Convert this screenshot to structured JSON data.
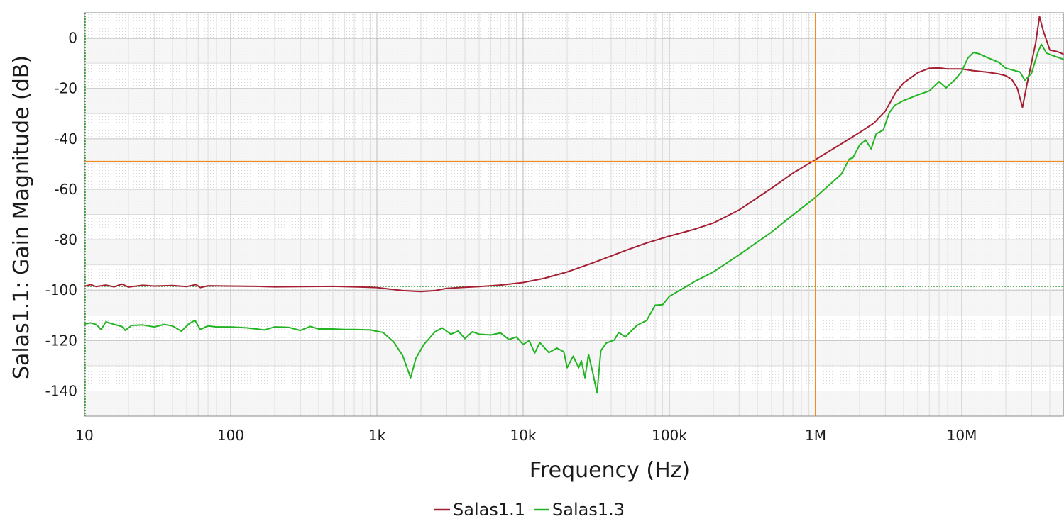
{
  "chart_data": {
    "type": "line",
    "xlabel": "Frequency (Hz)",
    "ylabel": "Salas1.1: Gain Magnitude (dB)",
    "xscale": "log",
    "xlim": [
      10,
      50000000
    ],
    "ylim": [
      -150,
      10
    ],
    "grid": true,
    "legend_position": "bottom-center",
    "x_ticks": [
      10,
      100,
      1000,
      10000,
      100000,
      1000000,
      10000000
    ],
    "x_tick_labels": [
      "10",
      "100",
      "1k",
      "10k",
      "100k",
      "1M",
      "10M"
    ],
    "y_ticks": [
      0,
      -20,
      -40,
      -60,
      -80,
      -100,
      -120,
      -140
    ],
    "y_tick_labels": [
      "0",
      "-20",
      "-40",
      "-60",
      "-80",
      "-100",
      "-120",
      "-140"
    ],
    "cursors": {
      "vertical_x": 1000000,
      "horizontal_y": -49,
      "reference_y": -98.5
    },
    "colors": {
      "cursor": "#f08c1e",
      "reference_line": "#1f9a1f",
      "zero_line": "#000000",
      "ylabel": "#a51f32"
    },
    "series": [
      {
        "name": "Salas1.1",
        "color": "#a51f32",
        "points": [
          [
            10,
            -98.5
          ],
          [
            11,
            -97.8
          ],
          [
            12,
            -98.6
          ],
          [
            14,
            -98.0
          ],
          [
            16,
            -98.7
          ],
          [
            18,
            -97.6
          ],
          [
            20,
            -98.8
          ],
          [
            25,
            -98.1
          ],
          [
            30,
            -98.4
          ],
          [
            40,
            -98.2
          ],
          [
            50,
            -98.6
          ],
          [
            58,
            -97.8
          ],
          [
            62,
            -99.0
          ],
          [
            70,
            -98.3
          ],
          [
            100,
            -98.4
          ],
          [
            150,
            -98.5
          ],
          [
            200,
            -98.7
          ],
          [
            300,
            -98.6
          ],
          [
            500,
            -98.5
          ],
          [
            700,
            -98.7
          ],
          [
            1000,
            -99.0
          ],
          [
            1500,
            -100.2
          ],
          [
            2000,
            -100.6
          ],
          [
            2500,
            -100.2
          ],
          [
            3000,
            -99.3
          ],
          [
            4000,
            -98.9
          ],
          [
            5000,
            -98.6
          ],
          [
            7000,
            -98.0
          ],
          [
            10000,
            -97.0
          ],
          [
            14000,
            -95.3
          ],
          [
            20000,
            -92.8
          ],
          [
            30000,
            -89.2
          ],
          [
            50000,
            -84.3
          ],
          [
            70000,
            -81.3
          ],
          [
            100000,
            -78.6
          ],
          [
            150000,
            -75.8
          ],
          [
            200000,
            -73.4
          ],
          [
            300000,
            -68.2
          ],
          [
            500000,
            -59.6
          ],
          [
            700000,
            -53.6
          ],
          [
            1000000,
            -48.2
          ],
          [
            1500000,
            -42.0
          ],
          [
            2000000,
            -37.5
          ],
          [
            2500000,
            -33.8
          ],
          [
            3000000,
            -29.0
          ],
          [
            3500000,
            -22.0
          ],
          [
            4000000,
            -17.8
          ],
          [
            5000000,
            -13.8
          ],
          [
            6000000,
            -12.0
          ],
          [
            7000000,
            -11.9
          ],
          [
            8000000,
            -12.3
          ],
          [
            10000000,
            -12.3
          ],
          [
            12000000,
            -13.0
          ],
          [
            15000000,
            -13.6
          ],
          [
            18000000,
            -14.3
          ],
          [
            20000000,
            -15.0
          ],
          [
            22000000,
            -16.5
          ],
          [
            24000000,
            -20.0
          ],
          [
            26000000,
            -27.5
          ],
          [
            28000000,
            -18.0
          ],
          [
            32000000,
            -2.0
          ],
          [
            34000000,
            8.5
          ],
          [
            36000000,
            3.0
          ],
          [
            40000000,
            -4.8
          ],
          [
            45000000,
            -5.4
          ],
          [
            50000000,
            -6.5
          ]
        ]
      },
      {
        "name": "Salas1.3",
        "color": "#22b422",
        "points": [
          [
            10,
            -113.5
          ],
          [
            11,
            -113.0
          ],
          [
            12,
            -113.6
          ],
          [
            13,
            -115.6
          ],
          [
            14,
            -112.6
          ],
          [
            16,
            -113.6
          ],
          [
            18,
            -114.4
          ],
          [
            19,
            -116.0
          ],
          [
            21,
            -114.0
          ],
          [
            25,
            -113.8
          ],
          [
            30,
            -114.6
          ],
          [
            35,
            -113.6
          ],
          [
            40,
            -114.2
          ],
          [
            46,
            -116.3
          ],
          [
            52,
            -113.3
          ],
          [
            57,
            -112.0
          ],
          [
            62,
            -115.6
          ],
          [
            70,
            -114.2
          ],
          [
            80,
            -114.6
          ],
          [
            100,
            -114.6
          ],
          [
            130,
            -115.0
          ],
          [
            170,
            -115.8
          ],
          [
            200,
            -114.6
          ],
          [
            250,
            -114.8
          ],
          [
            300,
            -116.0
          ],
          [
            350,
            -114.4
          ],
          [
            400,
            -115.4
          ],
          [
            500,
            -115.4
          ],
          [
            600,
            -115.6
          ],
          [
            700,
            -115.6
          ],
          [
            900,
            -115.8
          ],
          [
            1100,
            -116.8
          ],
          [
            1300,
            -120.5
          ],
          [
            1500,
            -126.0
          ],
          [
            1700,
            -134.8
          ],
          [
            1850,
            -127.0
          ],
          [
            2100,
            -121.5
          ],
          [
            2500,
            -116.5
          ],
          [
            2800,
            -115.0
          ],
          [
            3200,
            -117.5
          ],
          [
            3600,
            -116.2
          ],
          [
            4000,
            -119.3
          ],
          [
            4500,
            -116.5
          ],
          [
            5000,
            -117.5
          ],
          [
            6000,
            -117.8
          ],
          [
            7000,
            -117.0
          ],
          [
            8000,
            -119.6
          ],
          [
            9000,
            -118.6
          ],
          [
            10000,
            -121.6
          ],
          [
            11000,
            -120.0
          ],
          [
            12000,
            -125.0
          ],
          [
            13000,
            -120.8
          ],
          [
            15000,
            -124.8
          ],
          [
            17000,
            -123.0
          ],
          [
            19000,
            -124.5
          ],
          [
            20000,
            -130.8
          ],
          [
            22000,
            -126.2
          ],
          [
            24000,
            -130.8
          ],
          [
            25000,
            -128.0
          ],
          [
            26500,
            -134.8
          ],
          [
            28000,
            -125.5
          ],
          [
            30000,
            -133.0
          ],
          [
            32000,
            -140.8
          ],
          [
            34000,
            -124.0
          ],
          [
            37000,
            -121.0
          ],
          [
            42000,
            -119.8
          ],
          [
            45000,
            -116.8
          ],
          [
            50000,
            -118.6
          ],
          [
            60000,
            -114.0
          ],
          [
            70000,
            -112.0
          ],
          [
            80000,
            -106.0
          ],
          [
            90000,
            -105.8
          ],
          [
            100000,
            -102.5
          ],
          [
            150000,
            -96.5
          ],
          [
            200000,
            -92.8
          ],
          [
            300000,
            -86.0
          ],
          [
            500000,
            -77.0
          ],
          [
            700000,
            -70.2
          ],
          [
            1000000,
            -63.2
          ],
          [
            1500000,
            -54.0
          ],
          [
            1700000,
            -48.0
          ],
          [
            1800000,
            -47.5
          ],
          [
            2000000,
            -42.5
          ],
          [
            2200000,
            -40.5
          ],
          [
            2400000,
            -44.0
          ],
          [
            2600000,
            -38.0
          ],
          [
            2900000,
            -36.5
          ],
          [
            3200000,
            -29.5
          ],
          [
            3500000,
            -26.6
          ],
          [
            4000000,
            -24.8
          ],
          [
            5000000,
            -22.6
          ],
          [
            6000000,
            -21.0
          ],
          [
            7000000,
            -17.3
          ],
          [
            7800000,
            -19.8
          ],
          [
            9000000,
            -16.5
          ],
          [
            10000000,
            -13.2
          ],
          [
            11000000,
            -8.0
          ],
          [
            12000000,
            -5.8
          ],
          [
            13000000,
            -6.2
          ],
          [
            15000000,
            -7.8
          ],
          [
            18000000,
            -9.7
          ],
          [
            20000000,
            -12.0
          ],
          [
            25000000,
            -13.5
          ],
          [
            27000000,
            -16.8
          ],
          [
            30000000,
            -14.0
          ],
          [
            33000000,
            -6.0
          ],
          [
            35000000,
            -2.5
          ],
          [
            38000000,
            -6.0
          ],
          [
            42000000,
            -7.0
          ],
          [
            50000000,
            -8.5
          ]
        ]
      }
    ]
  }
}
